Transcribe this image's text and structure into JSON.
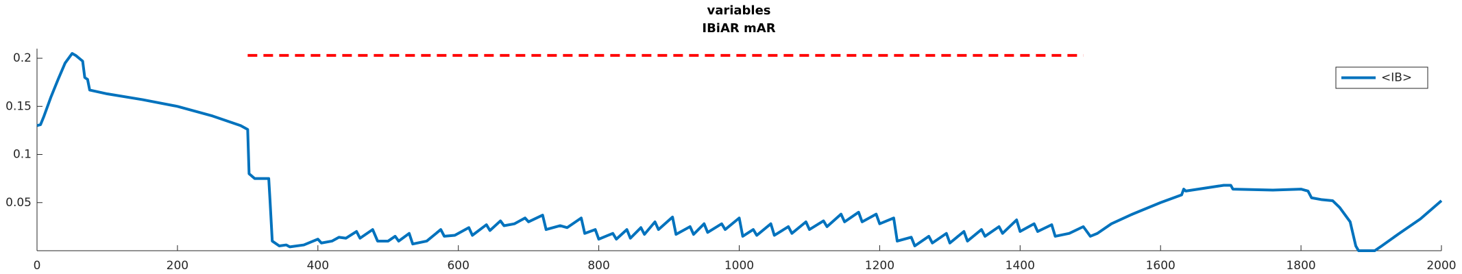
{
  "chart_data": {
    "type": "line",
    "title": "variables",
    "subtitle": "IBiAR mAR",
    "x": [
      0,
      5,
      10,
      20,
      30,
      40,
      50,
      55,
      65,
      68,
      72,
      75,
      100,
      150,
      200,
      250,
      290,
      300,
      302,
      310,
      330,
      332,
      335,
      345,
      355,
      360,
      380,
      400,
      405,
      420,
      430,
      440,
      455,
      460,
      478,
      485,
      500,
      510,
      515,
      530,
      535,
      555,
      575,
      580,
      595,
      615,
      620,
      640,
      645,
      660,
      665,
      680,
      695,
      700,
      720,
      725,
      745,
      755,
      775,
      780,
      795,
      800,
      820,
      825,
      840,
      845,
      860,
      865,
      880,
      885,
      905,
      910,
      930,
      935,
      950,
      955,
      975,
      980,
      1000,
      1005,
      1020,
      1025,
      1045,
      1050,
      1070,
      1075,
      1095,
      1100,
      1120,
      1125,
      1145,
      1150,
      1170,
      1175,
      1195,
      1200,
      1220,
      1225,
      1245,
      1250,
      1270,
      1275,
      1295,
      1300,
      1320,
      1325,
      1345,
      1350,
      1370,
      1375,
      1395,
      1400,
      1420,
      1425,
      1445,
      1450,
      1470,
      1490,
      1500,
      1510,
      1530,
      1560,
      1600,
      1630,
      1633,
      1636,
      1690,
      1700,
      1703,
      1760,
      1800,
      1810,
      1815,
      1830,
      1845,
      1855,
      1870,
      1878,
      1882,
      1905,
      1915,
      1940,
      1970,
      2000
    ],
    "series": [
      {
        "name": "<IB>",
        "color": "#0072bd",
        "values": [
          0.13,
          0.131,
          0.14,
          0.16,
          0.178,
          0.195,
          0.205,
          0.203,
          0.197,
          0.18,
          0.178,
          0.167,
          0.163,
          0.157,
          0.15,
          0.14,
          0.13,
          0.126,
          0.08,
          0.075,
          0.075,
          0.05,
          0.01,
          0.005,
          0.006,
          0.004,
          0.006,
          0.012,
          0.008,
          0.01,
          0.014,
          0.013,
          0.02,
          0.013,
          0.022,
          0.01,
          0.01,
          0.015,
          0.01,
          0.018,
          0.007,
          0.01,
          0.022,
          0.015,
          0.016,
          0.024,
          0.016,
          0.027,
          0.021,
          0.031,
          0.026,
          0.028,
          0.034,
          0.03,
          0.037,
          0.022,
          0.026,
          0.024,
          0.034,
          0.018,
          0.022,
          0.012,
          0.018,
          0.012,
          0.022,
          0.013,
          0.024,
          0.017,
          0.03,
          0.022,
          0.035,
          0.017,
          0.025,
          0.017,
          0.028,
          0.019,
          0.028,
          0.022,
          0.034,
          0.015,
          0.022,
          0.016,
          0.028,
          0.016,
          0.025,
          0.018,
          0.03,
          0.022,
          0.031,
          0.025,
          0.038,
          0.03,
          0.04,
          0.03,
          0.038,
          0.028,
          0.034,
          0.01,
          0.014,
          0.005,
          0.015,
          0.008,
          0.018,
          0.008,
          0.02,
          0.01,
          0.022,
          0.015,
          0.025,
          0.018,
          0.032,
          0.02,
          0.028,
          0.02,
          0.027,
          0.015,
          0.018,
          0.025,
          0.015,
          0.018,
          0.028,
          0.038,
          0.05,
          0.058,
          0.064,
          0.062,
          0.068,
          0.068,
          0.064,
          0.063,
          0.064,
          0.062,
          0.055,
          0.053,
          0.052,
          0.045,
          0.03,
          0.005,
          0,
          0,
          0.005,
          0.018,
          0.033,
          0.052
        ]
      }
    ],
    "reference_line": {
      "x": [
        300,
        1490
      ],
      "y": 0.203,
      "color": "#ff0000",
      "style": "dashed"
    },
    "xlim": [
      0,
      2000
    ],
    "xticks": [
      0,
      200,
      400,
      600,
      800,
      1000,
      1200,
      1400,
      1600,
      1800,
      2000
    ],
    "ylim": [
      0,
      0.21
    ],
    "yticks": [
      0.05,
      0.1,
      0.15,
      0.2
    ],
    "legend": "northeast",
    "grid": false
  }
}
